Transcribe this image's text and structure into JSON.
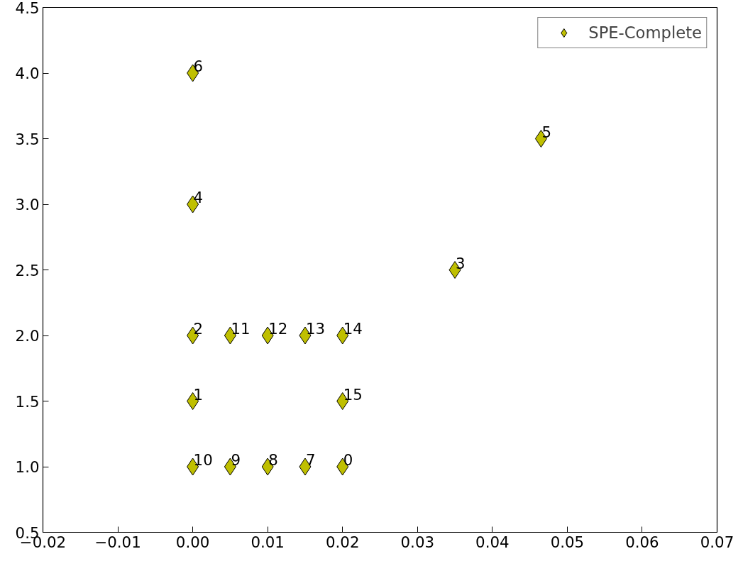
{
  "chart_data": {
    "type": "scatter",
    "x": [
      0.02,
      0,
      0,
      0.035,
      0,
      0.0465,
      0,
      0.015,
      0.01,
      0.005,
      0,
      0.005,
      0.01,
      0.015,
      0.02,
      0.02
    ],
    "series": [
      {
        "name": "SPE-Complete",
        "color": "#bfbf00",
        "values": [
          1.0,
          1.5,
          2.0,
          2.5,
          3.0,
          3.5,
          4.0,
          1.0,
          1.0,
          1.0,
          1.0,
          2.0,
          2.0,
          2.0,
          2.0,
          1.5
        ]
      }
    ],
    "annotations": [
      {
        "text": "0",
        "x": 0.02,
        "y": 1.0
      },
      {
        "text": "1",
        "x": 0,
        "y": 1.5
      },
      {
        "text": "2",
        "x": 0,
        "y": 2.0
      },
      {
        "text": "3",
        "x": 0.035,
        "y": 2.5
      },
      {
        "text": "4",
        "x": 0,
        "y": 3.0
      },
      {
        "text": "5",
        "x": 0.0465,
        "y": 3.5
      },
      {
        "text": "6",
        "x": 0,
        "y": 4.0
      },
      {
        "text": "7",
        "x": 0.015,
        "y": 1.0
      },
      {
        "text": "8",
        "x": 0.01,
        "y": 1.0
      },
      {
        "text": "9",
        "x": 0.005,
        "y": 1.0
      },
      {
        "text": "10",
        "x": 0,
        "y": 1.0
      },
      {
        "text": "11",
        "x": 0.005,
        "y": 2.0
      },
      {
        "text": "12",
        "x": 0.01,
        "y": 2.0
      },
      {
        "text": "13",
        "x": 0.015,
        "y": 2.0
      },
      {
        "text": "14",
        "x": 0.02,
        "y": 2.0
      },
      {
        "text": "15",
        "x": 0.02,
        "y": 1.5
      }
    ],
    "xlim": [
      -0.02,
      0.07
    ],
    "xticks": [
      {
        "value": -0.02,
        "label": "−0.02"
      },
      {
        "value": -0.01,
        "label": "−0.01"
      },
      {
        "value": 0,
        "label": "0.00"
      },
      {
        "value": 0.01,
        "label": "0.01"
      },
      {
        "value": 0.02,
        "label": "0.02"
      },
      {
        "value": 0.03,
        "label": "0.03"
      },
      {
        "value": 0.04,
        "label": "0.04"
      },
      {
        "value": 0.05,
        "label": "0.05"
      },
      {
        "value": 0.06,
        "label": "0.06"
      },
      {
        "value": 0.07,
        "label": "0.07"
      }
    ],
    "ylim": [
      0.5,
      4.5
    ],
    "yticks": [
      {
        "value": 0.5,
        "label": "0.5"
      },
      {
        "value": 1.0,
        "label": "1.0"
      },
      {
        "value": 1.5,
        "label": "1.5"
      },
      {
        "value": 2.0,
        "label": "2.0"
      },
      {
        "value": 2.5,
        "label": "2.5"
      },
      {
        "value": 3.0,
        "label": "3.0"
      },
      {
        "value": 3.5,
        "label": "3.5"
      },
      {
        "value": 4.0,
        "label": "4.0"
      },
      {
        "value": 4.5,
        "label": "4.5"
      }
    ],
    "marker": "diamond",
    "legend": "top right",
    "grid": false
  }
}
